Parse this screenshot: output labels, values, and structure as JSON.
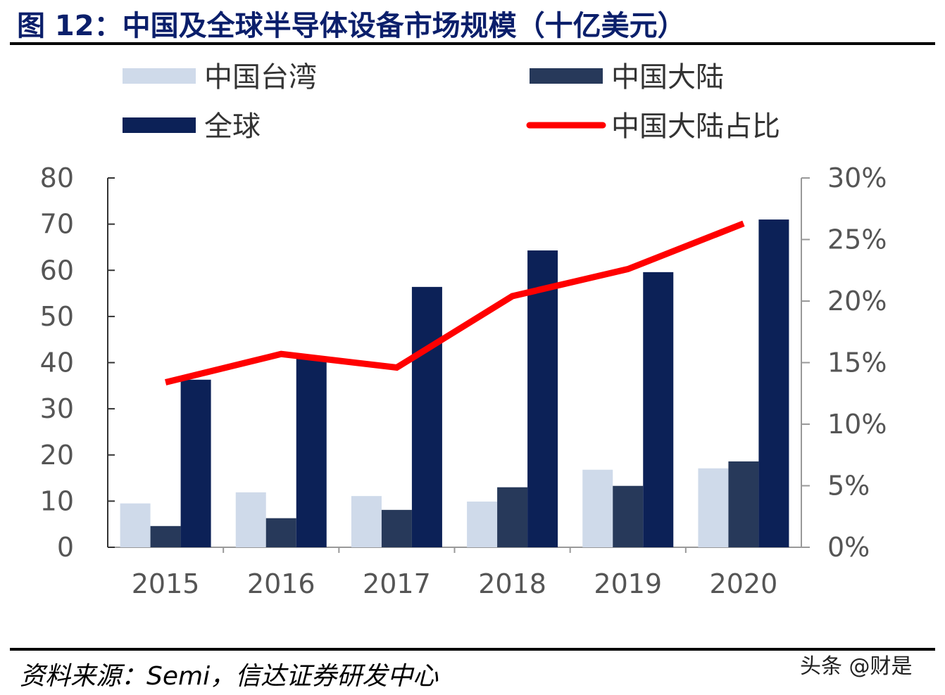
{
  "title": "图 12：中国及全球半导体设备市场规模（十亿美元）",
  "source": "资料来源：Semi，信达证券研发中心",
  "watermark": "头条 @财是",
  "chart_data": {
    "type": "bar",
    "categories": [
      "2015",
      "2016",
      "2017",
      "2018",
      "2019",
      "2020"
    ],
    "series": [
      {
        "name": "中国台湾",
        "type": "bar",
        "axis": "left",
        "color": "#cfdaea",
        "values": [
          9.5,
          11.9,
          11.1,
          9.9,
          16.8,
          17.1
        ]
      },
      {
        "name": "中国大陆",
        "type": "bar",
        "axis": "left",
        "color": "#27395a",
        "values": [
          4.6,
          6.3,
          8.1,
          13.0,
          13.3,
          18.6
        ]
      },
      {
        "name": "全球",
        "type": "bar",
        "axis": "left",
        "color": "#0c2157",
        "values": [
          36.3,
          41.0,
          56.4,
          64.3,
          59.6,
          71.0
        ]
      },
      {
        "name": "中国大陆占比",
        "type": "line",
        "axis": "right",
        "color": "#ff0000",
        "values": [
          13.4,
          15.7,
          14.6,
          20.4,
          22.6,
          26.3
        ]
      }
    ],
    "ylim": [
      0,
      80
    ],
    "yticks": [
      "0",
      "10",
      "20",
      "30",
      "40",
      "50",
      "60",
      "70",
      "80"
    ],
    "y2lim": [
      0,
      30
    ],
    "y2ticks": [
      "0%",
      "5%",
      "10%",
      "15%",
      "20%",
      "25%",
      "30%"
    ],
    "legend_placement": "top",
    "grid": false
  }
}
